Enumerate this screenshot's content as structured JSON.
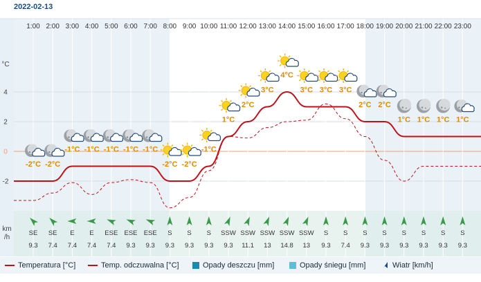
{
  "date": "2022-02-13",
  "y_unit": "°C",
  "wind_unit_label": [
    "km",
    "/h"
  ],
  "colors": {
    "temperature": "#c0101a",
    "feels_like": "#c0101a",
    "rain": "#1a8ab0",
    "snow": "#5cbfd8",
    "zero_line": "#f0a070",
    "temp_label": "#e08a00"
  },
  "legend": {
    "temperature": "Temperatura [°C]",
    "feels_like": "Temp. odczuwalna [°C]",
    "rain": "Opady deszczu [mm]",
    "snow": "Opady śniegu [mm]",
    "wind": "Wiatr [km/h]"
  },
  "chart_data": {
    "type": "line",
    "x": [
      "1:00",
      "2:00",
      "3:00",
      "4:00",
      "5:00",
      "6:00",
      "7:00",
      "8:00",
      "9:00",
      "10:00",
      "11:00",
      "12:00",
      "13:00",
      "14:00",
      "15:00",
      "16:00",
      "17:00",
      "18:00",
      "19:00",
      "20:00",
      "21:00",
      "22:00",
      "23:00"
    ],
    "series": [
      {
        "name": "Temperatura [°C]",
        "values": [
          -2,
          -2,
          -1,
          -1,
          -1,
          -1,
          -1,
          -2,
          -2,
          -1,
          1,
          2,
          3,
          4,
          3,
          3,
          3,
          2,
          2,
          1,
          1,
          1,
          1
        ]
      },
      {
        "name": "Temp. odczuwalna [°C]",
        "values": [
          -3.3,
          -2.8,
          -2.1,
          -2.9,
          -2.1,
          -1.9,
          -2.1,
          -3.8,
          -3.1,
          -1.3,
          1,
          0.9,
          1.6,
          2,
          2.1,
          3.2,
          2.2,
          1,
          -0.6,
          -2,
          -1,
          -1,
          -1
        ]
      }
    ],
    "ylim": [
      -4,
      6
    ],
    "yticks": [
      -2,
      0,
      2,
      4
    ],
    "icons": [
      "moon-cloud",
      "moon-cloud",
      "moon-cloud",
      "moon-cloud",
      "moon-cloud",
      "moon-cloud",
      "moon-cloud",
      "sun-cloud",
      "sun-cloud",
      "sun-cloud",
      "sun-cloud",
      "sun-cloud",
      "sun-cloud",
      "sun-cloud",
      "sun-cloud",
      "sun-cloud",
      "sun-cloud",
      "moon-cloud",
      "moon-cloud",
      "moon",
      "moon",
      "moon",
      "moon-cloud"
    ],
    "wind_dir": [
      "SE",
      "SE",
      "E",
      "E",
      "ESE",
      "ESE",
      "ESE",
      "S",
      "S",
      "S",
      "SSW",
      "SSW",
      "SSW",
      "SSW",
      "SSW",
      "S",
      "S",
      "S",
      "S",
      "S",
      "S",
      "S",
      "S"
    ],
    "wind_speed": [
      9.3,
      7.4,
      7.4,
      7.4,
      7.4,
      9.3,
      9.3,
      9.3,
      9.3,
      9.3,
      9.3,
      11.1,
      13,
      14.8,
      13,
      9.3,
      7.4,
      9.3,
      9.3,
      9.3,
      9.3,
      9.3,
      9.3
    ]
  }
}
